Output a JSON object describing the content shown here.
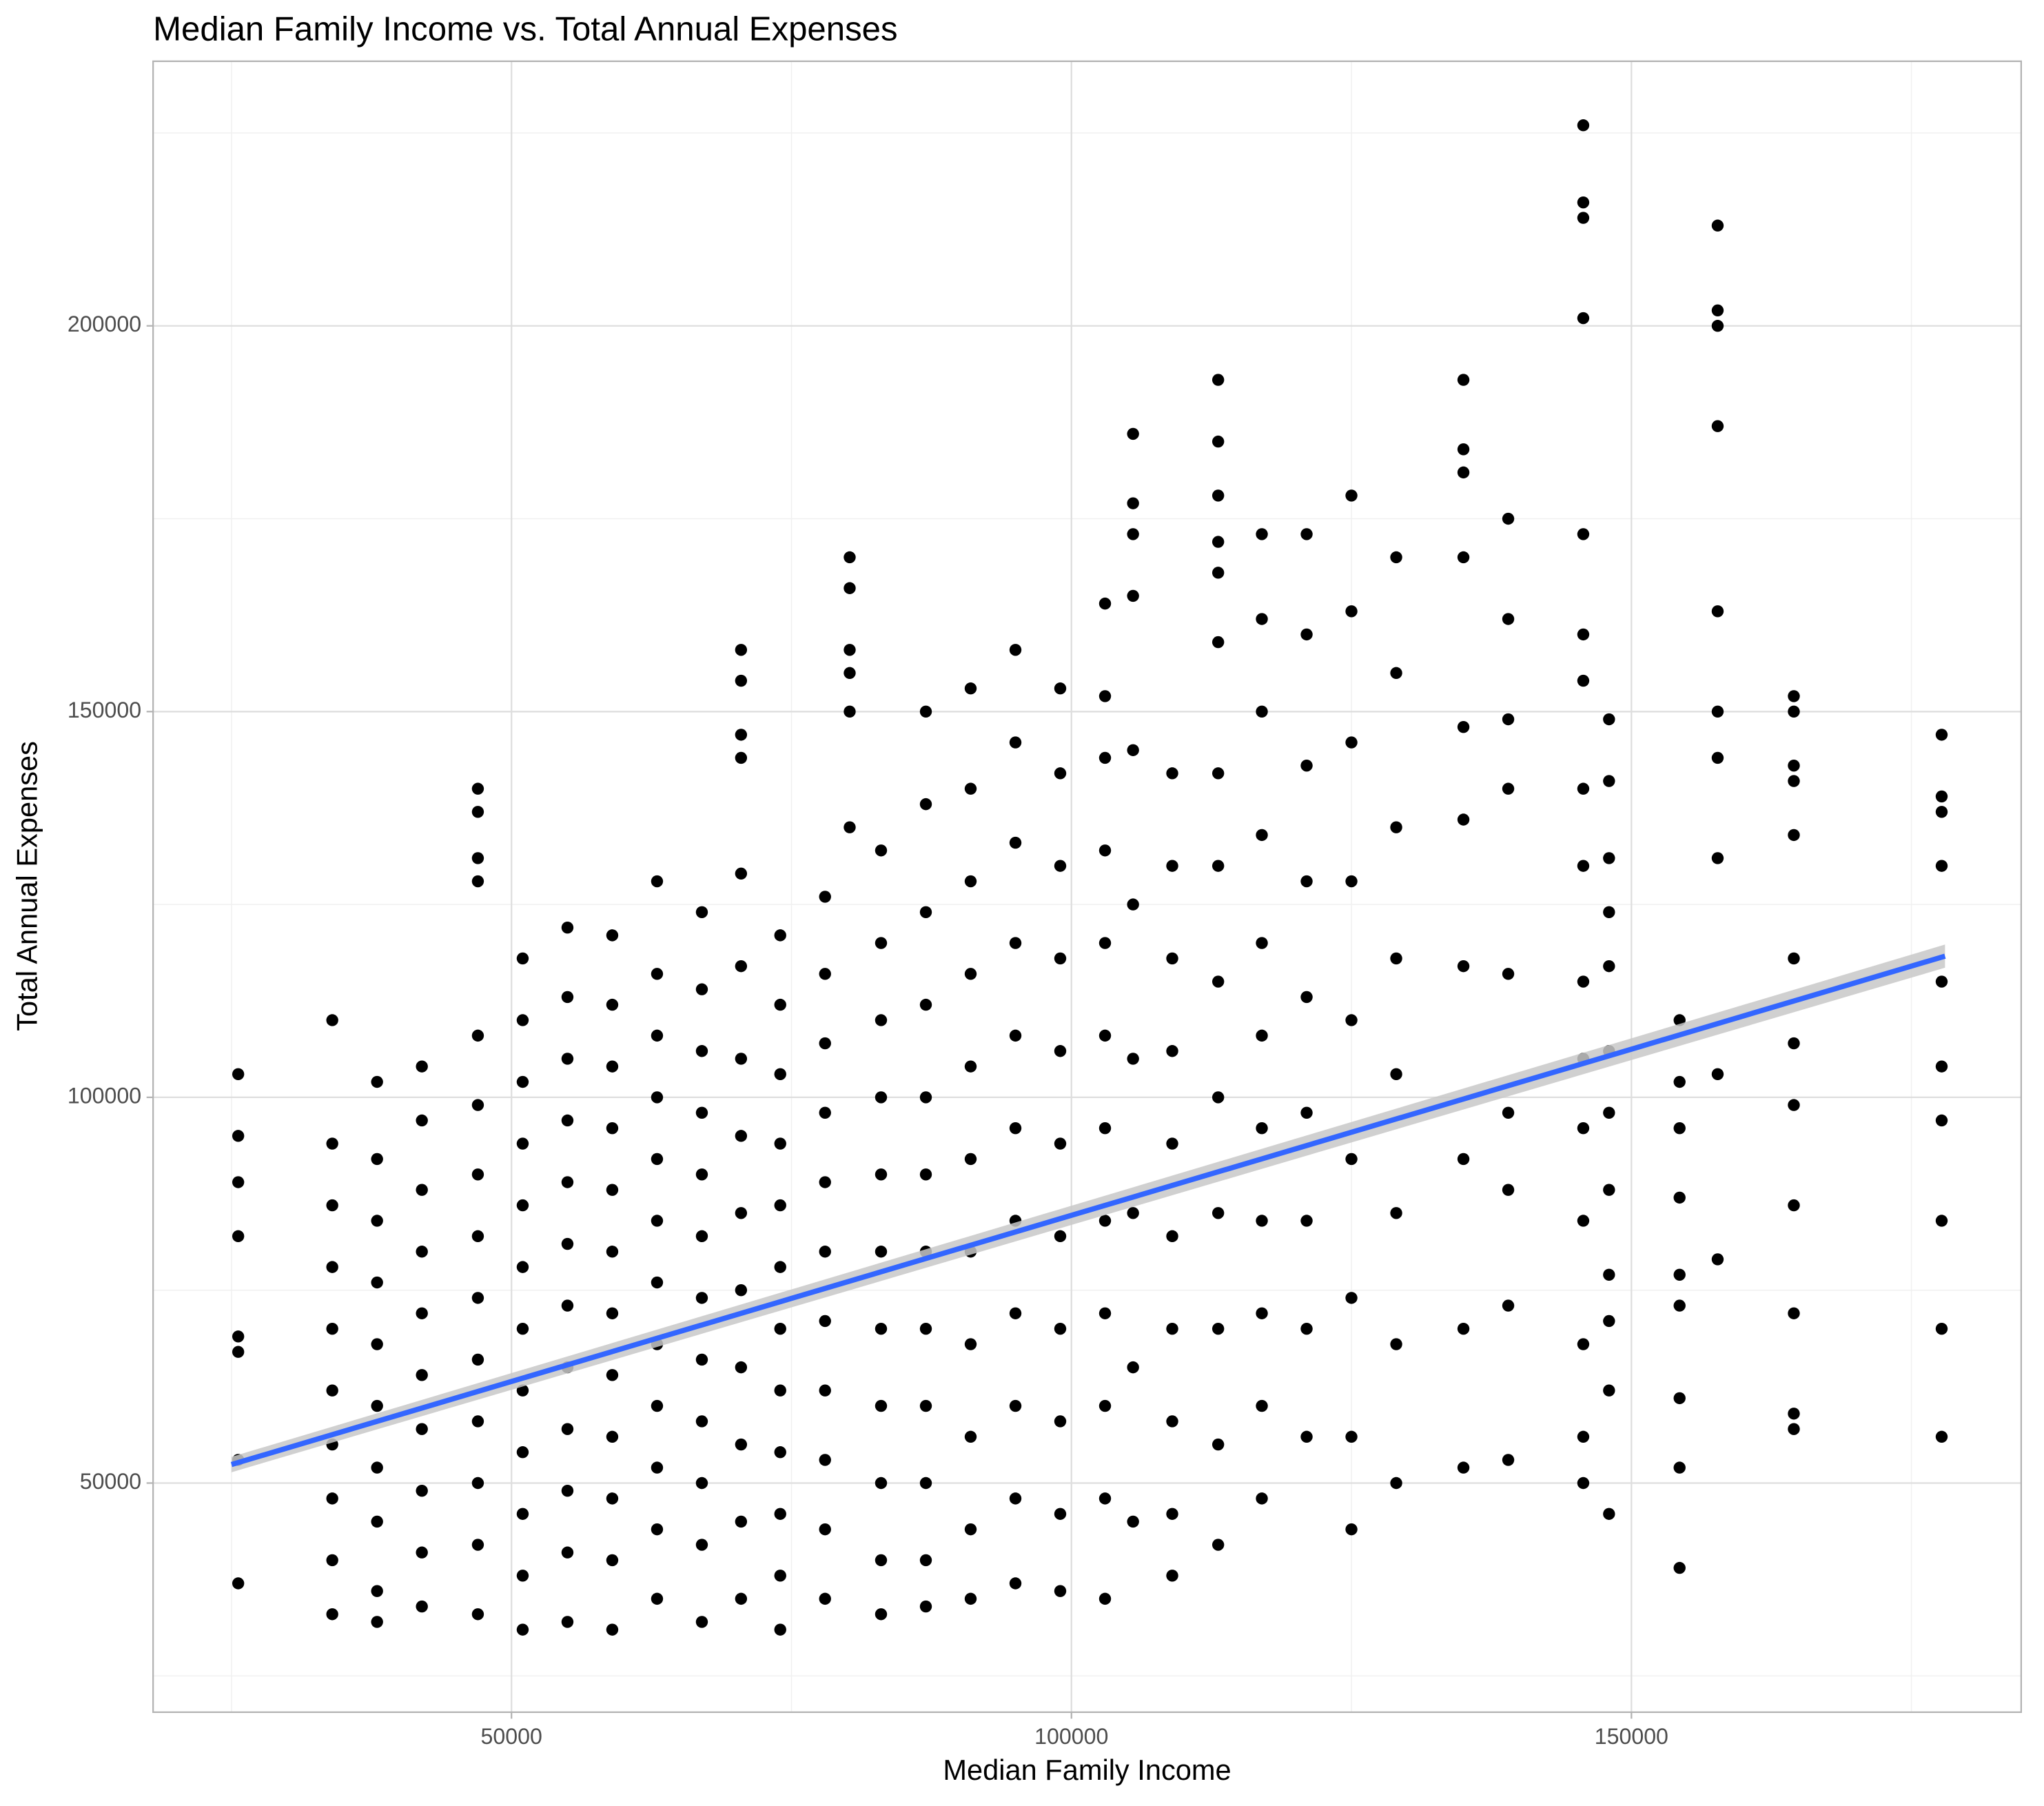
{
  "chart_data": {
    "type": "scatter",
    "title": "Median Family Income vs. Total Annual Expenses",
    "x_label": "Median Family Income",
    "y_label": "Total Annual Expenses",
    "xlim": [
      18000,
      184800
    ],
    "ylim": [
      20300,
      234300
    ],
    "xticks": [
      50000,
      100000,
      150000
    ],
    "yticks": [
      50000,
      100000,
      150000,
      200000
    ],
    "x_minor_grid": [
      25000,
      75000,
      125000,
      175000
    ],
    "y_minor_grid": [
      25000,
      75000,
      125000,
      175000,
      225000
    ],
    "grid": true,
    "color": "#000000",
    "x": [
      25600,
      25600,
      25600,
      25600,
      25600,
      25600,
      25600,
      25600,
      34000,
      34000,
      34000,
      34000,
      34000,
      34000,
      34000,
      34000,
      34000,
      34000,
      38000,
      38000,
      38000,
      38000,
      38000,
      38000,
      38000,
      38000,
      38000,
      38000,
      42000,
      42000,
      42000,
      42000,
      42000,
      42000,
      42000,
      42000,
      42000,
      42000,
      47000,
      47000,
      47000,
      47000,
      47000,
      47000,
      47000,
      47000,
      47000,
      47000,
      47000,
      47000,
      47000,
      47000,
      51000,
      51000,
      51000,
      51000,
      51000,
      51000,
      51000,
      51000,
      51000,
      51000,
      51000,
      51000,
      55000,
      55000,
      55000,
      55000,
      55000,
      55000,
      55000,
      55000,
      55000,
      55000,
      55000,
      55000,
      59000,
      59000,
      59000,
      59000,
      59000,
      59000,
      59000,
      59000,
      59000,
      59000,
      59000,
      59000,
      63000,
      63000,
      63000,
      63000,
      63000,
      63000,
      63000,
      63000,
      63000,
      63000,
      63000,
      63000,
      67000,
      67000,
      67000,
      67000,
      67000,
      67000,
      67000,
      67000,
      67000,
      67000,
      67000,
      67000,
      70500,
      70500,
      70500,
      70500,
      70500,
      70500,
      70500,
      70500,
      70500,
      70500,
      70500,
      70500,
      70500,
      70500,
      74000,
      74000,
      74000,
      74000,
      74000,
      74000,
      74000,
      74000,
      74000,
      74000,
      74000,
      74000,
      78000,
      78000,
      78000,
      78000,
      78000,
      78000,
      78000,
      78000,
      78000,
      78000,
      78000,
      80200,
      80200,
      80200,
      80200,
      80200,
      80200,
      83000,
      83000,
      83000,
      83000,
      83000,
      83000,
      83000,
      83000,
      83000,
      83000,
      83000,
      87000,
      87000,
      87000,
      87000,
      87000,
      87000,
      87000,
      87000,
      87000,
      87000,
      87000,
      87000,
      91000,
      91000,
      91000,
      91000,
      91000,
      91000,
      91000,
      91000,
      91000,
      91000,
      91000,
      95000,
      95000,
      95000,
      95000,
      95000,
      95000,
      95000,
      95000,
      95000,
      95000,
      95000,
      99000,
      99000,
      99000,
      99000,
      99000,
      99000,
      99000,
      99000,
      99000,
      99000,
      99000,
      103000,
      103000,
      103000,
      103000,
      103000,
      103000,
      103000,
      103000,
      103000,
      103000,
      103000,
      103000,
      105500,
      105500,
      105500,
      105500,
      105500,
      105500,
      105500,
      105500,
      105500,
      105500,
      109000,
      109000,
      109000,
      109000,
      109000,
      109000,
      109000,
      109000,
      109000,
      109000,
      113100,
      113100,
      113100,
      113100,
      113100,
      113100,
      113100,
      113100,
      113100,
      113100,
      113100,
      113100,
      113100,
      113100,
      117000,
      117000,
      117000,
      117000,
      117000,
      117000,
      117000,
      117000,
      117000,
      117000,
      117000,
      121000,
      121000,
      121000,
      121000,
      121000,
      121000,
      121000,
      121000,
      121000,
      125000,
      125000,
      125000,
      125000,
      125000,
      125000,
      125000,
      125000,
      125000,
      129000,
      129000,
      129000,
      129000,
      129000,
      129000,
      129000,
      129000,
      135000,
      135000,
      135000,
      135000,
      135000,
      135000,
      135000,
      135000,
      135000,
      135000,
      139000,
      139000,
      139000,
      139000,
      139000,
      139000,
      139000,
      139000,
      139000,
      145700,
      145700,
      145700,
      145700,
      145700,
      145700,
      145700,
      145700,
      145700,
      145700,
      145700,
      145700,
      145700,
      145700,
      145700,
      145700,
      148000,
      148000,
      148000,
      148000,
      148000,
      148000,
      148000,
      148000,
      148000,
      148000,
      148000,
      148000,
      154300,
      154300,
      154300,
      154300,
      154300,
      154300,
      154300,
      154300,
      154300,
      157700,
      157700,
      157700,
      157700,
      157700,
      157700,
      157700,
      157700,
      157700,
      157700,
      164500,
      164500,
      164500,
      164500,
      164500,
      164500,
      164500,
      164500,
      164500,
      164500,
      164500,
      164500,
      177700,
      177700,
      177700,
      177700,
      177700,
      177700,
      177700,
      177700,
      177700,
      177700
    ],
    "values": [
      103000,
      95000,
      89000,
      82000,
      69000,
      67000,
      53000,
      37000,
      110000,
      94000,
      86000,
      78000,
      70000,
      62000,
      55000,
      48000,
      40000,
      33000,
      102000,
      92000,
      84000,
      76000,
      68000,
      60000,
      52000,
      45000,
      36000,
      32000,
      104000,
      97000,
      88000,
      80000,
      72000,
      64000,
      57000,
      49000,
      41000,
      34000,
      140000,
      137000,
      131000,
      128000,
      108000,
      99000,
      90000,
      82000,
      74000,
      66000,
      58000,
      50000,
      42000,
      33000,
      118000,
      110000,
      102000,
      94000,
      86000,
      78000,
      70000,
      62000,
      54000,
      46000,
      38000,
      31000,
      122000,
      113000,
      105000,
      97000,
      89000,
      81000,
      73000,
      65000,
      57000,
      49000,
      41000,
      32000,
      121000,
      112000,
      104000,
      96000,
      88000,
      80000,
      72000,
      64000,
      56000,
      48000,
      40000,
      31000,
      128000,
      116000,
      108000,
      100000,
      92000,
      84000,
      76000,
      68000,
      60000,
      52000,
      44000,
      35000,
      124000,
      114000,
      106000,
      98000,
      90000,
      82000,
      74000,
      66000,
      58000,
      50000,
      42000,
      32000,
      158000,
      154000,
      147000,
      144000,
      129000,
      117000,
      105000,
      95000,
      85000,
      75000,
      65000,
      55000,
      45000,
      35000,
      121000,
      112000,
      103000,
      94000,
      86000,
      78000,
      70000,
      62000,
      54000,
      46000,
      38000,
      31000,
      126000,
      116000,
      107000,
      98000,
      89000,
      80000,
      71000,
      62000,
      53000,
      44000,
      35000,
      170000,
      166000,
      158000,
      155000,
      150000,
      135000,
      132000,
      120000,
      110000,
      100000,
      90000,
      80000,
      70000,
      60000,
      50000,
      40000,
      33000,
      150000,
      138000,
      124000,
      112000,
      100000,
      90000,
      80000,
      70000,
      60000,
      50000,
      40000,
      34000,
      153000,
      140000,
      128000,
      116000,
      104000,
      92000,
      80000,
      68000,
      56000,
      44000,
      35000,
      158000,
      146000,
      133000,
      120000,
      108000,
      96000,
      84000,
      72000,
      60000,
      48000,
      37000,
      153000,
      142000,
      130000,
      118000,
      106000,
      94000,
      82000,
      70000,
      58000,
      46000,
      36000,
      164000,
      152000,
      144000,
      132000,
      120000,
      108000,
      96000,
      84000,
      72000,
      60000,
      48000,
      35000,
      186000,
      177000,
      173000,
      165000,
      145000,
      125000,
      105000,
      85000,
      65000,
      45000,
      142000,
      130000,
      118000,
      106000,
      94000,
      82000,
      70000,
      58000,
      46000,
      38000,
      193000,
      185000,
      178000,
      172000,
      168000,
      159000,
      142000,
      130000,
      115000,
      100000,
      85000,
      70000,
      55000,
      42000,
      173000,
      162000,
      150000,
      134000,
      120000,
      108000,
      96000,
      84000,
      72000,
      60000,
      48000,
      173000,
      160000,
      143000,
      128000,
      113000,
      98000,
      84000,
      70000,
      56000,
      178000,
      163000,
      146000,
      128000,
      110000,
      92000,
      74000,
      56000,
      44000,
      170000,
      155000,
      135000,
      118000,
      103000,
      85000,
      68000,
      50000,
      193000,
      184000,
      181000,
      170000,
      148000,
      136000,
      117000,
      92000,
      70000,
      52000,
      175000,
      162000,
      149000,
      140000,
      116000,
      98000,
      88000,
      73000,
      53000,
      226000,
      216000,
      214000,
      201000,
      173000,
      160000,
      154000,
      140000,
      130000,
      115000,
      105000,
      96000,
      84000,
      68000,
      56000,
      50000,
      149000,
      141000,
      131000,
      124000,
      117000,
      106000,
      98000,
      88000,
      77000,
      71000,
      62000,
      46000,
      110000,
      102000,
      96000,
      87000,
      77000,
      73000,
      61000,
      52000,
      39000,
      213000,
      202000,
      200000,
      187000,
      163000,
      150000,
      144000,
      131000,
      103000,
      79000,
      152000,
      150000,
      143000,
      141000,
      134000,
      118000,
      107000,
      99000,
      86000,
      72000,
      59000,
      57000,
      147000,
      139000,
      137000,
      130000,
      115000,
      104000,
      97000,
      84000,
      70000,
      56000
    ],
    "trend_line": {
      "x": [
        25000,
        178000
      ],
      "values": [
        52400,
        118300
      ],
      "color": "#3366ff",
      "band_lower": [
        51400,
        116800
      ],
      "band_upper": [
        53400,
        119800
      ],
      "band_color": "#c8c8c8"
    }
  }
}
